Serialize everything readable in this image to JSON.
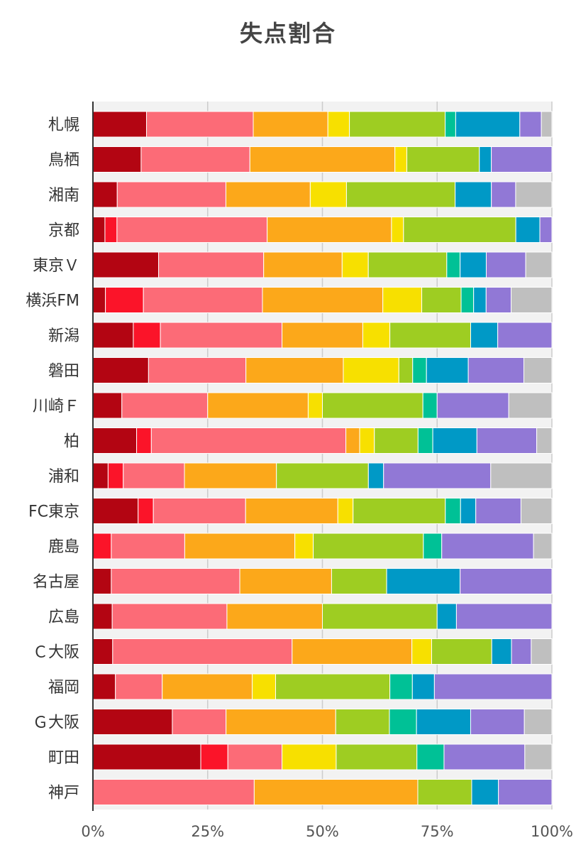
{
  "chart_data": {
    "type": "bar",
    "orientation": "horizontal",
    "stacked": "percent",
    "title": "失点割合",
    "xlim": [
      0,
      100
    ],
    "x_ticks": [
      "0%",
      "25%",
      "50%",
      "75%",
      "100%"
    ],
    "grid": true,
    "categories": [
      "札幌",
      "鳥栖",
      "湘南",
      "京都",
      "東京Ｖ",
      "横浜FM",
      "新潟",
      "磐田",
      "川崎Ｆ",
      "柏",
      "浦和",
      "FC東京",
      "鹿島",
      "名古屋",
      "広島",
      "Ｃ大阪",
      "福岡",
      "Ｇ大阪",
      "町田",
      "神戸"
    ],
    "segment_colors": [
      "#b30512",
      "#fb1429",
      "#fc6b77",
      "#fca81a",
      "#f7e000",
      "#9ecd22",
      "#00c196",
      "#0099c6",
      "#9178d6",
      "#bfbfbf"
    ],
    "rows": [
      [
        11.7,
        0,
        23.3,
        16.3,
        4.7,
        20.9,
        2.3,
        14.0,
        4.7,
        2.3
      ],
      [
        10.5,
        0,
        23.7,
        31.6,
        2.6,
        15.8,
        0,
        2.6,
        13.2,
        0
      ],
      [
        5.3,
        0,
        23.7,
        18.4,
        7.9,
        23.7,
        0,
        7.9,
        5.3,
        7.9
      ],
      [
        2.6,
        2.6,
        32.5,
        26.9,
        2.6,
        24.3,
        0,
        5.2,
        2.6,
        0
      ],
      [
        14.3,
        0,
        22.9,
        17.1,
        5.7,
        17.1,
        2.9,
        5.7,
        8.6,
        5.7
      ],
      [
        2.7,
        8.2,
        25.7,
        26.0,
        8.4,
        8.5,
        2.7,
        2.7,
        5.4,
        8.8
      ],
      [
        8.8,
        5.9,
        26.5,
        17.6,
        5.9,
        17.6,
        0,
        5.9,
        11.8,
        0
      ],
      [
        12.1,
        0,
        21.2,
        21.2,
        12.1,
        3.0,
        3.0,
        9.1,
        12.1,
        6.1
      ],
      [
        6.3,
        0,
        18.7,
        21.9,
        3.1,
        21.9,
        3.1,
        0,
        15.6,
        9.4
      ],
      [
        9.5,
        3.2,
        42.3,
        3.0,
        3.2,
        9.5,
        3.2,
        9.6,
        13.0,
        3.3
      ],
      [
        3.3,
        3.3,
        13.3,
        20.0,
        0,
        20.0,
        0,
        3.3,
        23.3,
        13.3
      ],
      [
        9.8,
        3.3,
        20.0,
        20.0,
        3.3,
        20.0,
        3.3,
        3.3,
        9.8,
        6.7
      ],
      [
        0,
        4.0,
        16.0,
        24.0,
        4.0,
        24.0,
        4.0,
        0,
        20.0,
        4.0
      ],
      [
        4.0,
        0,
        28.0,
        20.0,
        0,
        12.0,
        0,
        16.0,
        20.0,
        0
      ],
      [
        4.2,
        0,
        25.0,
        20.8,
        0,
        25.0,
        0,
        4.2,
        20.8,
        0
      ],
      [
        4.3,
        0,
        39.1,
        26.1,
        4.3,
        13.1,
        0,
        4.3,
        4.3,
        4.5
      ],
      [
        4.9,
        0,
        10.2,
        19.6,
        5.1,
        24.9,
        4.9,
        4.8,
        25.6,
        0
      ],
      [
        17.3,
        0,
        11.7,
        23.9,
        0,
        11.7,
        5.9,
        11.8,
        11.7,
        6.0
      ],
      [
        23.5,
        5.9,
        11.8,
        0,
        11.8,
        17.6,
        5.9,
        0,
        17.6,
        5.9
      ],
      [
        0,
        0,
        35.0,
        35.5,
        0,
        11.7,
        0,
        5.8,
        11.6,
        0
      ]
    ]
  }
}
